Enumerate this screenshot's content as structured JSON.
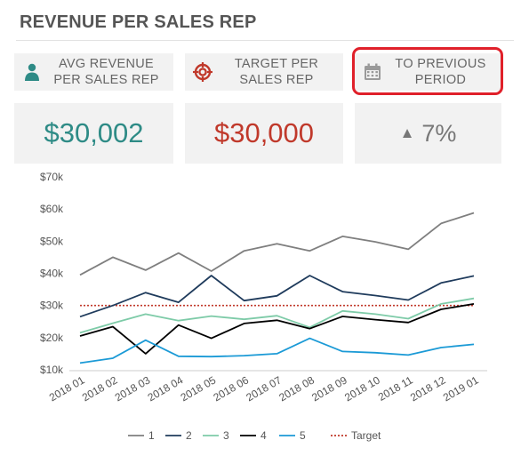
{
  "header": {
    "title": "REVENUE PER SALES REP"
  },
  "kpis": [
    {
      "label_line1": "AVG REVENUE",
      "label_line2": "PER SALES REP",
      "value": "$30,002",
      "icon": "person-icon",
      "color": "#2e8b86"
    },
    {
      "label_line1": "TARGET PER",
      "label_line2": "SALES REP",
      "value": "$30,000",
      "icon": "target-icon",
      "color": "#c0392b"
    },
    {
      "label_line1": "TO PREVIOUS",
      "label_line2": "PERIOD",
      "value": "7%",
      "icon": "calendar-icon",
      "trend": "up"
    }
  ],
  "chart_data": {
    "type": "line",
    "categories": [
      "2018 01",
      "2018 02",
      "2018 03",
      "2018 04",
      "2018 05",
      "2018 06",
      "2018 07",
      "2018 08",
      "2018 09",
      "2018 10",
      "2018 11",
      "2018 12",
      "2019 01"
    ],
    "yticks": [
      "$10k",
      "$20k",
      "$30k",
      "$40k",
      "$50k",
      "$60k",
      "$70k"
    ],
    "ylim": [
      10000,
      70000
    ],
    "grid": false,
    "legend_position": "bottom",
    "series": [
      {
        "name": "1",
        "color": "#7f7f7f",
        "values": [
          39500,
          45000,
          41000,
          46300,
          40700,
          47000,
          49200,
          47000,
          51500,
          49800,
          47500,
          55500,
          58800
        ]
      },
      {
        "name": "2",
        "color": "#1f3b5c",
        "values": [
          26500,
          30000,
          34000,
          31000,
          39300,
          31500,
          33000,
          39300,
          34300,
          33100,
          31700,
          37000,
          39200
        ]
      },
      {
        "name": "3",
        "color": "#7ecba8",
        "values": [
          21500,
          24500,
          27300,
          25300,
          26700,
          25700,
          26800,
          23200,
          28300,
          27300,
          25900,
          30500,
          32200
        ]
      },
      {
        "name": "4",
        "color": "#000000",
        "values": [
          20500,
          23400,
          15000,
          23900,
          19800,
          24400,
          25400,
          22800,
          26600,
          25600,
          24700,
          28800,
          30500
        ]
      },
      {
        "name": "5",
        "color": "#1b9ad6",
        "values": [
          12100,
          13600,
          19200,
          14200,
          14100,
          14400,
          15000,
          19800,
          15700,
          15300,
          14600,
          16900,
          17900
        ]
      }
    ],
    "target": {
      "name": "Target",
      "value": 30000,
      "color": "#c0392b",
      "style": "dotted"
    }
  }
}
